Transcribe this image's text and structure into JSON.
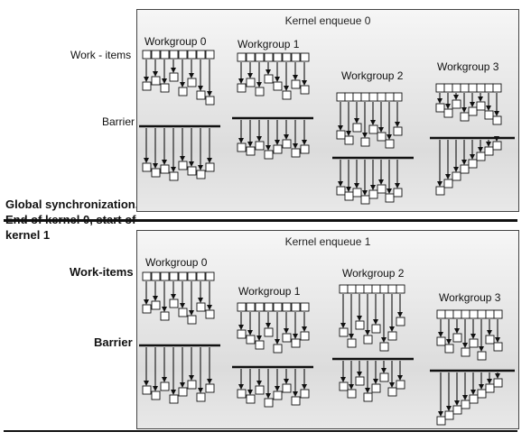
{
  "left_labels": {
    "work_items_0": "Work - items",
    "barrier_0": "Barrier",
    "sync_line1": "Global synchronization.",
    "sync_line2": "End of kernel 0, start of",
    "sync_line3": "kernel 1",
    "work_items_1": "Work-items",
    "barrier_1": "Barrier"
  },
  "kernels": [
    {
      "title": "Kernel enqueue 0",
      "workgroups": [
        {
          "label": "Workgroup 0"
        },
        {
          "label": "Workgroup 1"
        },
        {
          "label": "Workgroup 2"
        },
        {
          "label": "Workgroup 3"
        }
      ]
    },
    {
      "title": "Kernel enqueue 1",
      "workgroups": [
        {
          "label": "Workgroup 0"
        },
        {
          "label": "Workgroup 1"
        },
        {
          "label": "Workgroup 2"
        },
        {
          "label": "Workgroup 3"
        }
      ]
    }
  ],
  "colors": {
    "ink": "#111111",
    "box_fill": "#ffffff",
    "panel_bg": "#e4e4e4"
  }
}
